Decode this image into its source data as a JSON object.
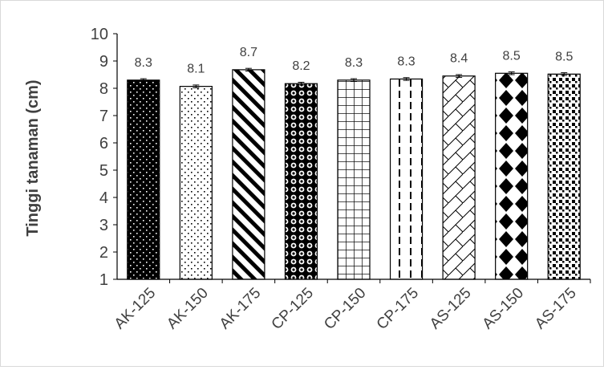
{
  "chart_data": {
    "type": "bar",
    "title": "",
    "xlabel": "",
    "ylabel": "Tinggi tanaman (cm)",
    "ylim": [
      1,
      10
    ],
    "yticks": [
      1,
      2,
      3,
      4,
      5,
      6,
      7,
      8,
      9,
      10
    ],
    "grid": false,
    "legend": "none",
    "categories": [
      "AK-125",
      "AK-150",
      "AK-175",
      "CP-125",
      "CP-150",
      "CP-175",
      "AS-125",
      "AS-150",
      "AS-175"
    ],
    "values": [
      8.3,
      8.07,
      8.68,
      8.17,
      8.3,
      8.34,
      8.45,
      8.55,
      8.52
    ],
    "data_labels": [
      "8.3",
      "8.1",
      "8.7",
      "8.2",
      "8.3",
      "8.3",
      "8.4",
      "8.5",
      "8.5"
    ],
    "error": [
      0.05,
      0.05,
      0.05,
      0.05,
      0.05,
      0.05,
      0.05,
      0.05,
      0.05
    ],
    "patterns": [
      "black-white-dots",
      "white-black-dots",
      "diagonal-stripes",
      "black-circles",
      "grid",
      "dashed-vertical",
      "diagonal-brick",
      "large-diamonds",
      "small-squares"
    ],
    "colors": {
      "bar_stroke": "#000000",
      "axis": "#000000",
      "text": "#404040"
    }
  }
}
